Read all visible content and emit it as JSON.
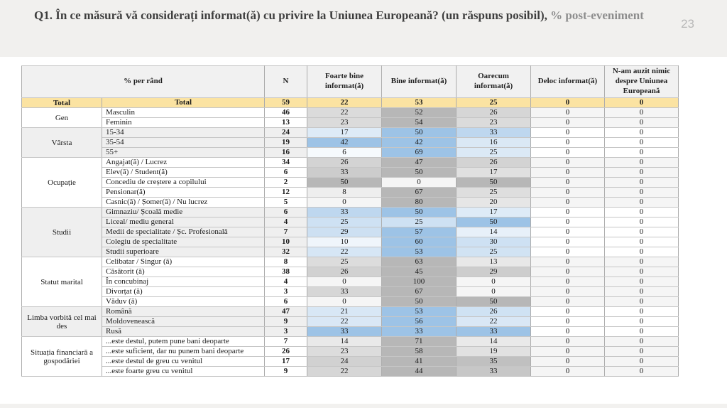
{
  "slide": {
    "title_main": "Q1. În ce măsură vă considerați informat(ă) cu privire la Uniunea Europeană? (un răspuns posibil), ",
    "title_muted": "% post-eveniment",
    "page_number": "23"
  },
  "colors": {
    "total_row_bg": "#FBE3A2",
    "header_bg": "#F1F1F1",
    "band_label_bg": "#EFEFEF",
    "plain_label_bg": "#FFFFFF",
    "gray_scale_low": "#F5F5F5",
    "gray_scale_high": "#B7B7B7",
    "blue_scale_low": "#FFFFFF",
    "blue_scale_high": "#9DC3E6"
  },
  "table": {
    "header_row_label": "% per rând",
    "header_n": "N",
    "answer_headers": [
      "Foarte bine informat(ă)",
      "Bine informat(ă)",
      "Oarecum informat(ă)",
      "Deloc informat(ă)",
      "N-am auzit nimic despre Uniunea Europeană"
    ],
    "total_row": {
      "group": "Total",
      "label": "Total",
      "n": 59,
      "values": [
        22,
        53,
        25,
        0,
        0
      ]
    },
    "groups": [
      {
        "name": "Gen",
        "scale": "gray",
        "rows": [
          {
            "label": "Masculin",
            "n": 46,
            "values": [
              22,
              52,
              26,
              0,
              0
            ]
          },
          {
            "label": "Feminin",
            "n": 13,
            "values": [
              23,
              54,
              23,
              0,
              0
            ]
          }
        ]
      },
      {
        "name": "Vârsta",
        "scale": "blue",
        "rows": [
          {
            "label": "15-34",
            "n": 24,
            "values": [
              17,
              50,
              33,
              0,
              0
            ]
          },
          {
            "label": "35-54",
            "n": 19,
            "values": [
              42,
              42,
              16,
              0,
              0
            ]
          },
          {
            "label": "55+",
            "n": 16,
            "values": [
              6,
              69,
              25,
              0,
              0
            ]
          }
        ]
      },
      {
        "name": "Ocupație",
        "scale": "gray",
        "rows": [
          {
            "label": "Angajat(ă) / Lucrez",
            "n": 34,
            "values": [
              26,
              47,
              26,
              0,
              0
            ]
          },
          {
            "label": "Elev(ă) / Student(ă)",
            "n": 6,
            "values": [
              33,
              50,
              17,
              0,
              0
            ]
          },
          {
            "label": "Concediu de creștere a copilului",
            "n": 2,
            "values": [
              50,
              0,
              50,
              0,
              0
            ]
          },
          {
            "label": "Pensionar(ă)",
            "n": 12,
            "values": [
              8,
              67,
              25,
              0,
              0
            ]
          },
          {
            "label": "Casnic(ă) / Șomer(ă) / Nu lucrez",
            "n": 5,
            "values": [
              0,
              80,
              20,
              0,
              0
            ]
          }
        ]
      },
      {
        "name": "Studii",
        "scale": "blue",
        "rows": [
          {
            "label": "Gimnaziu/ Școală medie",
            "n": 6,
            "values": [
              33,
              50,
              17,
              0,
              0
            ]
          },
          {
            "label": "Liceal/ mediu general",
            "n": 4,
            "values": [
              25,
              25,
              50,
              0,
              0
            ]
          },
          {
            "label": "Medii de specialitate / Șc. Profesională",
            "n": 7,
            "values": [
              29,
              57,
              14,
              0,
              0
            ]
          },
          {
            "label": "Colegiu de specialitate",
            "n": 10,
            "values": [
              10,
              60,
              30,
              0,
              0
            ]
          },
          {
            "label": "Studii superioare",
            "n": 32,
            "values": [
              22,
              53,
              25,
              0,
              0
            ]
          }
        ]
      },
      {
        "name": "Statut marital",
        "scale": "gray",
        "rows": [
          {
            "label": "Celibatar / Singur (ă)",
            "n": 8,
            "values": [
              25,
              63,
              13,
              0,
              0
            ]
          },
          {
            "label": "Căsătorit (ă)",
            "n": 38,
            "values": [
              26,
              45,
              29,
              0,
              0
            ]
          },
          {
            "label": "În concubinaj",
            "n": 4,
            "values": [
              0,
              100,
              0,
              0,
              0
            ]
          },
          {
            "label": "Divorțat (ă)",
            "n": 3,
            "values": [
              33,
              67,
              0,
              0,
              0
            ]
          },
          {
            "label": "Văduv (ă)",
            "n": 6,
            "values": [
              0,
              50,
              50,
              0,
              0
            ]
          }
        ]
      },
      {
        "name": "Limba vorbită cel mai des",
        "scale": "blue",
        "rows": [
          {
            "label": "Română",
            "n": 47,
            "values": [
              21,
              53,
              26,
              0,
              0
            ]
          },
          {
            "label": "Moldovenească",
            "n": 9,
            "values": [
              22,
              56,
              22,
              0,
              0
            ]
          },
          {
            "label": "Rusă",
            "n": 3,
            "values": [
              33,
              33,
              33,
              0,
              0
            ]
          }
        ]
      },
      {
        "name": "Situația financiară a gospodăriei",
        "scale": "gray",
        "rows": [
          {
            "label": "...este destul, putem pune bani deoparte",
            "n": 7,
            "values": [
              14,
              71,
              14,
              0,
              0
            ]
          },
          {
            "label": "...este suficient, dar nu punem bani deoparte",
            "n": 26,
            "values": [
              23,
              58,
              19,
              0,
              0
            ]
          },
          {
            "label": "...este destul de greu cu venitul",
            "n": 17,
            "values": [
              24,
              41,
              35,
              0,
              0
            ]
          },
          {
            "label": "...este foarte greu cu venitul",
            "n": 9,
            "values": [
              22,
              44,
              33,
              0,
              0
            ]
          }
        ]
      }
    ]
  }
}
